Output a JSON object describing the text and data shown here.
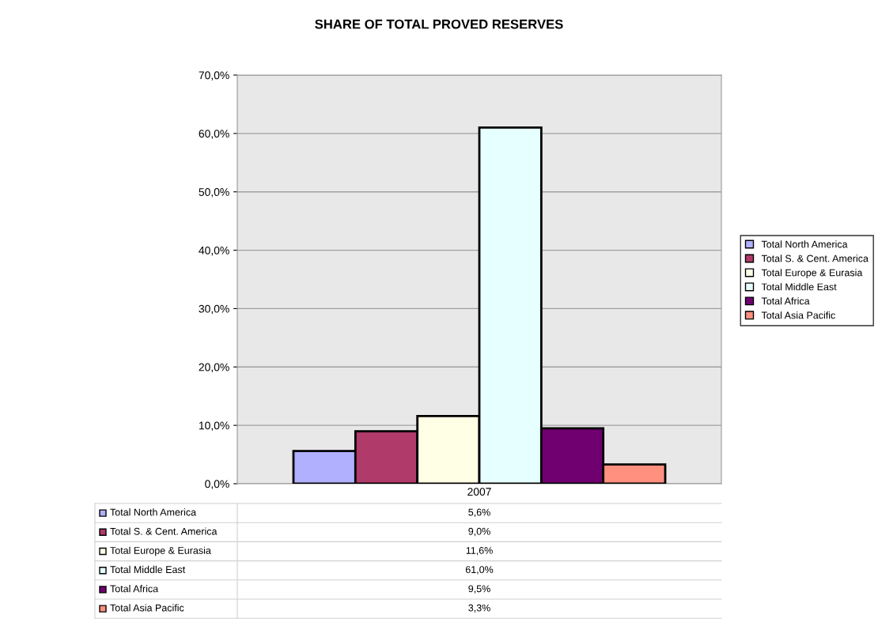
{
  "chart_data": {
    "type": "bar",
    "title": "SHARE OF TOTAL PROVED RESERVES",
    "categories": [
      "2007"
    ],
    "series": [
      {
        "name": "Total North America",
        "color": "#b0b0ff",
        "values": [
          5.6
        ]
      },
      {
        "name": "Total S. & Cent. America",
        "color": "#b03a6a",
        "values": [
          9.0
        ]
      },
      {
        "name": "Total Europe & Eurasia",
        "color": "#ffffe6",
        "values": [
          11.6
        ]
      },
      {
        "name": "Total Middle East",
        "color": "#e6ffff",
        "values": [
          61.0
        ]
      },
      {
        "name": "Total Africa",
        "color": "#700070",
        "values": [
          9.5
        ]
      },
      {
        "name": "Total Asia Pacific",
        "color": "#ff9080",
        "values": [
          3.3
        ]
      }
    ],
    "annotations": [
      "5,6%",
      "9,0%",
      "11,6%",
      "61,0%",
      "9,5%",
      "3,3%"
    ],
    "ylim": [
      0,
      70
    ],
    "yticks": [
      {
        "value": 0,
        "label": "0,0%"
      },
      {
        "value": 10,
        "label": "10,0%"
      },
      {
        "value": 20,
        "label": "20,0%"
      },
      {
        "value": 30,
        "label": "30,0%"
      },
      {
        "value": 40,
        "label": "40,0%"
      },
      {
        "value": 50,
        "label": "50,0%"
      },
      {
        "value": 60,
        "label": "60,0%"
      },
      {
        "value": 70,
        "label": "70,0%"
      }
    ],
    "grid": "y",
    "legend": "right"
  }
}
